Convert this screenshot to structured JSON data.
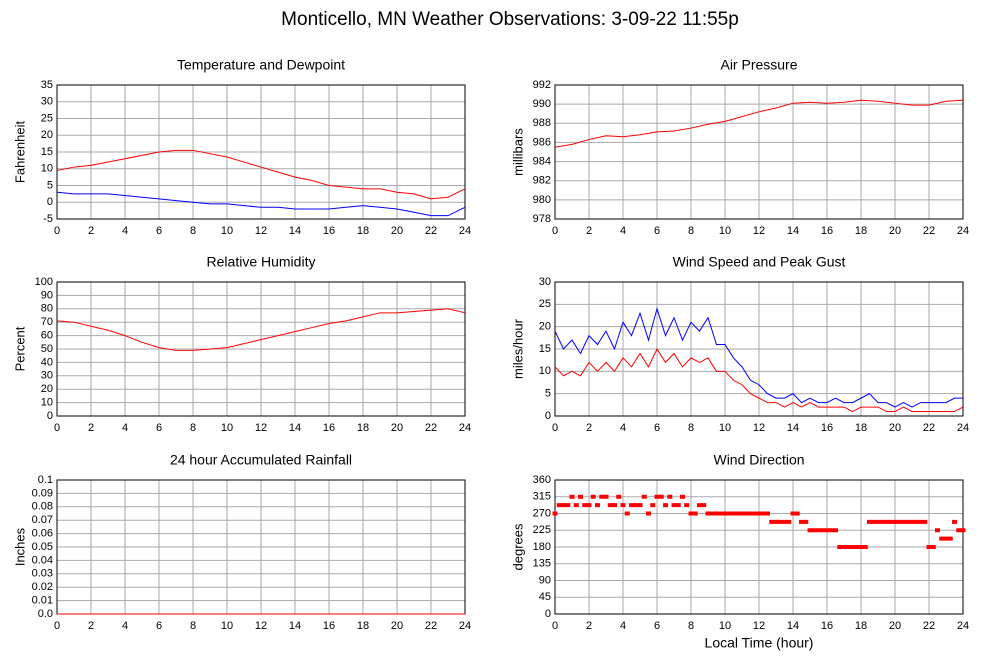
{
  "title": "Monticello, MN Weather Observations: 3-09-22 11:55p",
  "chart_data": [
    {
      "type": "line",
      "title": "Temperature and Dewpoint",
      "ylabel": "Fahrenheit",
      "x": [
        0,
        1,
        2,
        3,
        4,
        5,
        6,
        7,
        8,
        9,
        10,
        11,
        12,
        13,
        14,
        15,
        16,
        17,
        18,
        19,
        20,
        21,
        22,
        23,
        24
      ],
      "series": [
        {
          "color": "#ff0000",
          "values": [
            9.5,
            10.5,
            11,
            12,
            13,
            14,
            15,
            15.5,
            15.5,
            14.5,
            13.5,
            12,
            10.5,
            9,
            7.5,
            6.5,
            5,
            4.5,
            4,
            4,
            3,
            2.5,
            1,
            1.5,
            4
          ]
        },
        {
          "color": "#0000ff",
          "values": [
            3,
            2.5,
            2.5,
            2.5,
            2,
            1.5,
            1,
            0.5,
            0,
            -0.5,
            -0.5,
            -1,
            -1.5,
            -1.5,
            -2,
            -2,
            -2,
            -1.5,
            -1,
            -1.5,
            -2,
            -3,
            -4,
            -4,
            -1.5
          ]
        }
      ],
      "xlim": [
        0,
        24
      ],
      "xticks": [
        0,
        2,
        4,
        6,
        8,
        10,
        12,
        14,
        16,
        18,
        20,
        22,
        24
      ],
      "ylim": [
        -5,
        35
      ],
      "yticks": [
        -5,
        0,
        5,
        10,
        15,
        20,
        25,
        30,
        35
      ],
      "grid": true
    },
    {
      "type": "line",
      "title": "Air Pressure",
      "ylabel": "millibars",
      "x": [
        0,
        1,
        2,
        3,
        4,
        5,
        6,
        7,
        8,
        9,
        10,
        11,
        12,
        13,
        14,
        15,
        16,
        17,
        18,
        19,
        20,
        21,
        22,
        23,
        24
      ],
      "series": [
        {
          "color": "#ff0000",
          "values": [
            985.5,
            985.8,
            986.3,
            986.7,
            986.6,
            986.8,
            987.1,
            987.2,
            987.5,
            987.9,
            988.2,
            988.7,
            989.2,
            989.6,
            990.1,
            990.2,
            990.1,
            990.2,
            990.4,
            990.3,
            990.1,
            989.9,
            989.9,
            990.3,
            990.4
          ]
        }
      ],
      "xlim": [
        0,
        24
      ],
      "xticks": [
        0,
        2,
        4,
        6,
        8,
        10,
        12,
        14,
        16,
        18,
        20,
        22,
        24
      ],
      "ylim": [
        978,
        992
      ],
      "yticks": [
        978,
        980,
        982,
        984,
        986,
        988,
        990,
        992
      ],
      "grid": true
    },
    {
      "type": "line",
      "title": "Relative Humidity",
      "ylabel": "Percent",
      "x": [
        0,
        1,
        2,
        3,
        4,
        5,
        6,
        7,
        8,
        9,
        10,
        11,
        12,
        13,
        14,
        15,
        16,
        17,
        18,
        19,
        20,
        21,
        22,
        23,
        24
      ],
      "series": [
        {
          "color": "#ff0000",
          "values": [
            71,
            70,
            67,
            64,
            60,
            55,
            51,
            49,
            49,
            50,
            51,
            54,
            57,
            60,
            63,
            66,
            69,
            71,
            74,
            77,
            77,
            78,
            79,
            80,
            77
          ]
        }
      ],
      "xlim": [
        0,
        24
      ],
      "xticks": [
        0,
        2,
        4,
        6,
        8,
        10,
        12,
        14,
        16,
        18,
        20,
        22,
        24
      ],
      "ylim": [
        0,
        100
      ],
      "yticks": [
        0,
        10,
        20,
        30,
        40,
        50,
        60,
        70,
        80,
        90,
        100
      ],
      "grid": true
    },
    {
      "type": "line",
      "title": "Wind Speed and Peak Gust",
      "ylabel": "miles/hour",
      "x": [
        0,
        0.5,
        1,
        1.5,
        2,
        2.5,
        3,
        3.5,
        4,
        4.5,
        5,
        5.5,
        6,
        6.5,
        7,
        7.5,
        8,
        8.5,
        9,
        9.5,
        10,
        10.5,
        11,
        11.5,
        12,
        12.5,
        13,
        13.5,
        14,
        14.5,
        15,
        15.5,
        16,
        16.5,
        17,
        17.5,
        18,
        18.5,
        19,
        19.5,
        20,
        20.5,
        21,
        21.5,
        22,
        22.5,
        23,
        23.5,
        24
      ],
      "series": [
        {
          "color": "#0000ff",
          "values": [
            19,
            15,
            17,
            14,
            18,
            16,
            19,
            15,
            21,
            18,
            23,
            17,
            24,
            18,
            22,
            17,
            21,
            19,
            22,
            16,
            16,
            13,
            11,
            8,
            7,
            5,
            4,
            4,
            5,
            3,
            4,
            3,
            3,
            4,
            3,
            3,
            4,
            5,
            3,
            3,
            2,
            3,
            2,
            3,
            3,
            3,
            3,
            4,
            4
          ]
        },
        {
          "color": "#ff0000",
          "values": [
            11,
            9,
            10,
            9,
            12,
            10,
            12,
            10,
            13,
            11,
            14,
            11,
            15,
            12,
            14,
            11,
            13,
            12,
            13,
            10,
            10,
            8,
            7,
            5,
            4,
            3,
            3,
            2,
            3,
            2,
            3,
            2,
            2,
            2,
            2,
            1,
            2,
            2,
            2,
            1,
            1,
            2,
            1,
            1,
            1,
            1,
            1,
            1,
            2
          ]
        }
      ],
      "xlim": [
        0,
        24
      ],
      "xticks": [
        0,
        2,
        4,
        6,
        8,
        10,
        12,
        14,
        16,
        18,
        20,
        22,
        24
      ],
      "ylim": [
        0,
        30
      ],
      "yticks": [
        0,
        5,
        10,
        15,
        20,
        25,
        30
      ],
      "grid": true
    },
    {
      "type": "line",
      "title": "24 hour Accumulated Rainfall",
      "ylabel": "Inches",
      "x": [
        0,
        24
      ],
      "series": [
        {
          "color": "#ff0000",
          "values": [
            0,
            0
          ]
        }
      ],
      "xlim": [
        0,
        24
      ],
      "xticks": [
        0,
        2,
        4,
        6,
        8,
        10,
        12,
        14,
        16,
        18,
        20,
        22,
        24
      ],
      "ylim": [
        0,
        0.1
      ],
      "yticks": [
        {
          "value": 0,
          "label": "0.0"
        },
        0.01,
        0.02,
        0.03,
        0.04,
        0.05,
        0.06,
        0.07,
        0.08,
        0.09,
        0.1
      ],
      "grid": true
    },
    {
      "type": "scatter",
      "title": "Wind Direction",
      "ylabel": "degrees",
      "xlabel": "Local Time (hour)",
      "x": [
        0,
        0.25,
        0.5,
        0.75,
        1,
        1.25,
        1.5,
        1.75,
        2,
        2.25,
        2.5,
        2.75,
        3,
        3.25,
        3.5,
        3.75,
        4,
        4.25,
        4.5,
        4.75,
        5,
        5.25,
        5.5,
        5.75,
        6,
        6.25,
        6.5,
        6.75,
        7,
        7.25,
        7.5,
        7.75,
        8,
        8.25,
        8.5,
        8.75,
        9,
        9.25,
        9.5,
        9.75,
        10,
        10.25,
        10.5,
        10.75,
        11,
        11.25,
        11.5,
        11.75,
        12,
        12.25,
        12.5,
        12.75,
        13,
        13.25,
        13.5,
        13.75,
        14,
        14.25,
        14.5,
        14.75,
        15,
        15.25,
        15.5,
        15.75,
        16,
        16.25,
        16.5,
        16.75,
        17,
        17.25,
        17.5,
        17.75,
        18,
        18.25,
        18.5,
        18.75,
        19,
        19.25,
        19.5,
        19.75,
        20,
        20.25,
        20.5,
        20.75,
        21,
        21.25,
        21.5,
        21.75,
        22,
        22.25,
        22.5,
        22.75,
        23,
        23.25,
        23.5,
        23.75,
        24
      ],
      "series": [
        {
          "color": "#ff0000",
          "values": [
            270,
            292.5,
            292.5,
            292.5,
            315,
            292.5,
            315,
            292.5,
            292.5,
            315,
            292.5,
            315,
            315,
            292.5,
            292.5,
            315,
            292.5,
            270,
            292.5,
            292.5,
            292.5,
            315,
            270,
            292.5,
            315,
            315,
            292.5,
            315,
            292.5,
            292.5,
            315,
            292.5,
            270,
            270,
            292.5,
            292.5,
            270,
            270,
            270,
            270,
            270,
            270,
            270,
            270,
            270,
            270,
            270,
            270,
            270,
            270,
            270,
            247.5,
            247.5,
            247.5,
            247.5,
            247.5,
            270,
            270,
            247.5,
            247.5,
            225,
            225,
            225,
            225,
            225,
            225,
            225,
            180,
            180,
            180,
            180,
            180,
            180,
            180,
            247.5,
            247.5,
            247.5,
            247.5,
            247.5,
            247.5,
            247.5,
            247.5,
            247.5,
            247.5,
            247.5,
            247.5,
            247.5,
            247.5,
            180,
            180,
            225,
            202.5,
            202.5,
            202.5,
            247.5,
            225,
            225
          ]
        }
      ],
      "xlim": [
        0,
        24
      ],
      "xticks": [
        0,
        2,
        4,
        6,
        8,
        10,
        12,
        14,
        16,
        18,
        20,
        22,
        24
      ],
      "ylim": [
        0,
        360
      ],
      "yticks": [
        0,
        45,
        90,
        135,
        180,
        225,
        270,
        315,
        360
      ],
      "grid": true
    }
  ]
}
